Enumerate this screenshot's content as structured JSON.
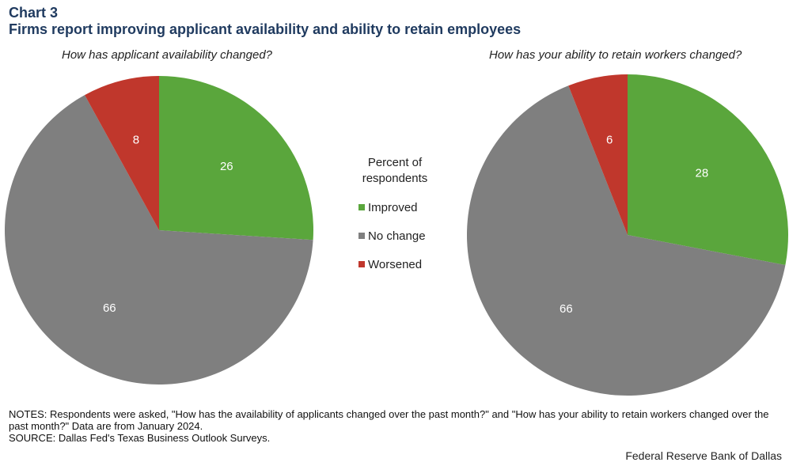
{
  "header": {
    "chart_number": "Chart 3",
    "title": "Firms report improving applicant availability and ability to retain employees"
  },
  "legend": {
    "title_line1": "Percent of",
    "title_line2": "respondents",
    "items": [
      {
        "label": "Improved",
        "color": "#5aa63c"
      },
      {
        "label": "No change",
        "color": "#7f7f7f"
      },
      {
        "label": "Worsened",
        "color": "#c0372c"
      }
    ]
  },
  "chart_data": [
    {
      "type": "pie",
      "title": "How has applicant availability changed?",
      "categories": [
        "Improved",
        "No change",
        "Worsened"
      ],
      "values": [
        26,
        66,
        8
      ],
      "colors": [
        "#5aa63c",
        "#7f7f7f",
        "#c0372c"
      ]
    },
    {
      "type": "pie",
      "title": "How has your ability to retain workers changed?",
      "categories": [
        "Improved",
        "No change",
        "Worsened"
      ],
      "values": [
        28,
        66,
        6
      ],
      "colors": [
        "#5aa63c",
        "#7f7f7f",
        "#c0372c"
      ]
    }
  ],
  "footer": {
    "notes": "NOTES: Respondents were asked, \"How has the availability of applicants changed over the past month?\" and \"How has your ability to retain workers changed over the past month?\" Data are from January 2024.",
    "source": "SOURCE: Dallas Fed's Texas Business Outlook Surveys.",
    "credit": "Federal Reserve Bank of Dallas"
  }
}
